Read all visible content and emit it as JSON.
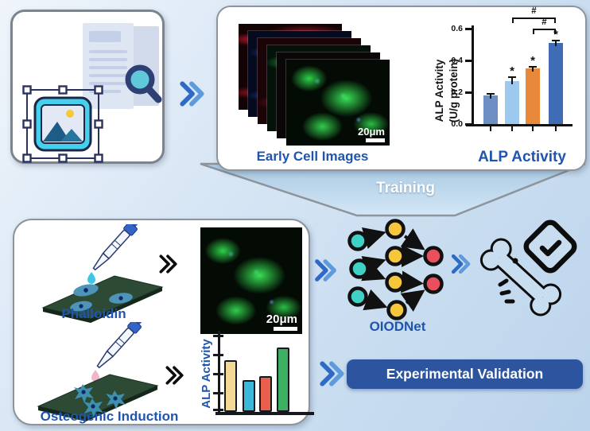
{
  "panels": {
    "literature": {
      "description": "literature image search"
    },
    "training_data": {
      "stack_label": "Early Cell Images",
      "scale_bar": "20μm"
    },
    "funnel": {
      "label": "Training"
    },
    "experiment": {
      "phalloidin_label": "Phalloidin",
      "osteogenic_label": "Osteogenic Induction",
      "scale_bar": "20μm"
    },
    "network": {
      "label": "OIODNet"
    },
    "banner": {
      "label": "Experimental Validation"
    }
  },
  "chart_data": [
    {
      "type": "bar",
      "title": "",
      "categories": [
        "",
        "",
        "",
        ""
      ],
      "values": [
        0.18,
        0.27,
        0.35,
        0.51
      ],
      "errors": [
        0.015,
        0.03,
        0.015,
        0.02
      ],
      "bar_colors": [
        "#6d8fc4",
        "#9cc9ed",
        "#e8883b",
        "#3f6cb4"
      ],
      "stars": [
        false,
        true,
        true,
        true
      ],
      "star_symbol": "*",
      "brackets": [
        {
          "from": 2,
          "to": 4,
          "label": "#"
        },
        {
          "from": 3,
          "to": 4,
          "label": "#"
        }
      ],
      "ylabel": "ALP Activity (U/g protein)",
      "ylabel_line1": "ALP Activity",
      "ylabel_line2": "(U/g protein)",
      "xlabel": "ALP Activity",
      "yticks": [
        "0.0",
        "0.2",
        "0.4",
        "0.6"
      ],
      "ylim": [
        0,
        0.6
      ],
      "grid": false,
      "legend": null
    },
    {
      "type": "bar",
      "title": "",
      "categories": [
        "",
        "",
        "",
        ""
      ],
      "values": [
        0.65,
        0.4,
        0.45,
        0.81
      ],
      "bar_colors": [
        "#f3d993",
        "#3cb8d9",
        "#e8604b",
        "#3caf62"
      ],
      "ylabel": "ALP Activity",
      "xlabel": "",
      "yticks": [],
      "ylim": [
        0,
        1.05
      ],
      "grid": false,
      "legend": null
    }
  ],
  "icons": {
    "document-icon": "stacked pages",
    "magnifier-icon": "search magnifying glass",
    "image-selection-icon": "picture with selection handles",
    "plus-icon": "+",
    "chevron-icon": "»",
    "pipette-icon": "dropper with droplet",
    "culture-plate-icon": "plate with cells",
    "neural-network-icon": "3-4-2 node network",
    "bone-check-icon": "bone with checkmark badge"
  },
  "colors": {
    "accent_blue_text": "#2055ad",
    "banner_bg": "#2d549e",
    "funnel_fill_top": "#a9c9e2",
    "funnel_fill_bottom": "#d3e7f6",
    "node_teal": "#3fd0c6",
    "node_yellow": "#f6c73c",
    "node_red": "#ea4f5e"
  }
}
